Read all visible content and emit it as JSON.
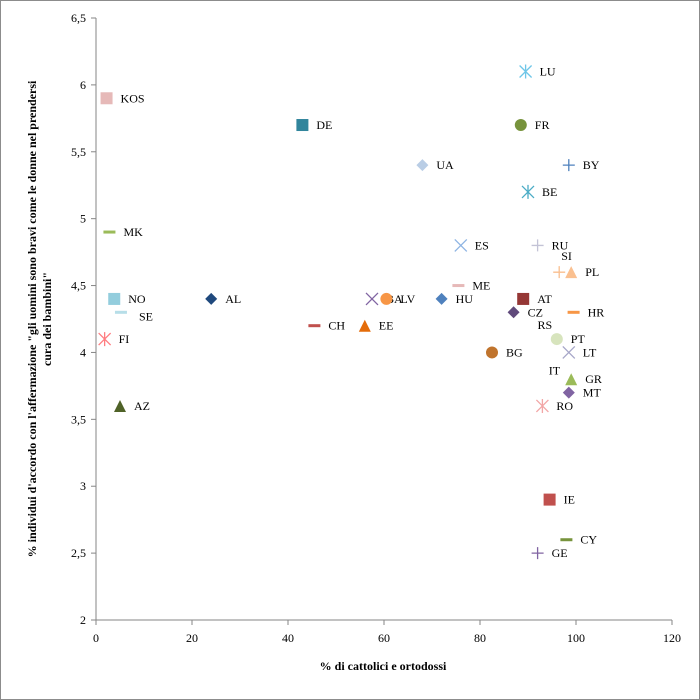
{
  "chart_data": {
    "type": "scatter",
    "xlabel": "% di cattolici e ortodossi",
    "ylabel_lines": [
      "% individui d'accordo con l'affermazione \"gli uomini sono bravi come le donne nel prendersi",
      "cura dei bambini\""
    ],
    "xlim": [
      0,
      120
    ],
    "ylim": [
      2,
      6.5
    ],
    "x_ticks": [
      "0",
      "20",
      "40",
      "60",
      "80",
      "100",
      "120"
    ],
    "y_ticks": [
      "2",
      "2,5",
      "3",
      "3,5",
      "4",
      "4,5",
      "5",
      "5,5",
      "6",
      "6,5"
    ],
    "grid": false,
    "points": [
      {
        "label": "LU",
        "x": 89.5,
        "y": 6.1,
        "marker": "asterisk",
        "color": "#6ec6e8"
      },
      {
        "label": "KOS",
        "x": 2.2,
        "y": 5.9,
        "marker": "square",
        "color": "#e6b9b8"
      },
      {
        "label": "DE",
        "x": 43,
        "y": 5.7,
        "marker": "square",
        "color": "#31859c"
      },
      {
        "label": "FR",
        "x": 88.5,
        "y": 5.7,
        "marker": "circle",
        "color": "#77933c"
      },
      {
        "label": "UA",
        "x": 68,
        "y": 5.4,
        "marker": "diamond",
        "color": "#b9cde5"
      },
      {
        "label": "BY",
        "x": 98.5,
        "y": 5.4,
        "marker": "plus",
        "color": "#4f81bd"
      },
      {
        "label": "BE",
        "x": 90,
        "y": 5.2,
        "marker": "asterisk",
        "color": "#4bacc6"
      },
      {
        "label": "MK",
        "x": 2.8,
        "y": 4.9,
        "marker": "dash",
        "color": "#9bbb59"
      },
      {
        "label": "ES",
        "x": 76,
        "y": 4.8,
        "marker": "x",
        "color": "#8eb4e3"
      },
      {
        "label": "RU",
        "x": 92,
        "y": 4.8,
        "marker": "plus",
        "color": "#c3c3d6"
      },
      {
        "label": "SI",
        "x": 96.5,
        "y": 4.6,
        "marker": "plus",
        "color": "#fabf8f"
      },
      {
        "label": "PL",
        "x": 99,
        "y": 4.6,
        "marker": "triangle",
        "color": "#fac090"
      },
      {
        "label": "ME",
        "x": 75.5,
        "y": 4.5,
        "marker": "dash",
        "color": "#e6b9b8"
      },
      {
        "label": "NO",
        "x": 3.8,
        "y": 4.4,
        "marker": "square",
        "color": "#93cddd"
      },
      {
        "label": "AL",
        "x": 24,
        "y": 4.4,
        "marker": "diamond",
        "color": "#1f497d"
      },
      {
        "label": "BA",
        "x": 57.5,
        "y": 4.4,
        "marker": "x",
        "color": "#8064a2"
      },
      {
        "label": "LV",
        "x": 60.5,
        "y": 4.4,
        "marker": "circle",
        "color": "#f79646"
      },
      {
        "label": "HU",
        "x": 72,
        "y": 4.4,
        "marker": "diamond",
        "color": "#4f81bd"
      },
      {
        "label": "AT",
        "x": 89,
        "y": 4.4,
        "marker": "square",
        "color": "#953735"
      },
      {
        "label": "SE",
        "x": 5.2,
        "y": 4.3,
        "marker": "dash",
        "color": "#b7dee8"
      },
      {
        "label": "CZ",
        "x": 87,
        "y": 4.3,
        "marker": "diamond",
        "color": "#604a7b"
      },
      {
        "label": "HR",
        "x": 99.5,
        "y": 4.3,
        "marker": "dash",
        "color": "#f79646"
      },
      {
        "label": "CH",
        "x": 45.5,
        "y": 4.2,
        "marker": "dash",
        "color": "#c0504d"
      },
      {
        "label": "EE",
        "x": 56,
        "y": 4.2,
        "marker": "triangle",
        "color": "#e46c0a"
      },
      {
        "label": "FI",
        "x": 1.8,
        "y": 4.1,
        "marker": "asterisk",
        "color": "#ff7c80"
      },
      {
        "label": "RS",
        "x": 93.5,
        "y": 4.1,
        "marker": "none",
        "color": "#000000"
      },
      {
        "label": "PT",
        "x": 96,
        "y": 4.1,
        "marker": "circle",
        "color": "#d7e4bd"
      },
      {
        "label": "BG",
        "x": 82.5,
        "y": 4.0,
        "marker": "circle",
        "color": "#c0742d"
      },
      {
        "label": "LT",
        "x": 98.5,
        "y": 4.0,
        "marker": "x",
        "color": "#a6a6c8"
      },
      {
        "label": "IT",
        "x": 95.5,
        "y": 3.82,
        "marker": "none",
        "color": "#000000"
      },
      {
        "label": "GR",
        "x": 99,
        "y": 3.8,
        "marker": "triangle",
        "color": "#9bbb59"
      },
      {
        "label": "MT",
        "x": 98.5,
        "y": 3.7,
        "marker": "diamond",
        "color": "#8064a2"
      },
      {
        "label": "AZ",
        "x": 5,
        "y": 3.6,
        "marker": "triangle",
        "color": "#4f6228"
      },
      {
        "label": "RO",
        "x": 93,
        "y": 3.6,
        "marker": "asterisk",
        "color": "#f2a6a6"
      },
      {
        "label": "IE",
        "x": 94.5,
        "y": 2.9,
        "marker": "square",
        "color": "#c0504d"
      },
      {
        "label": "CY",
        "x": 98,
        "y": 2.6,
        "marker": "dash",
        "color": "#77933c"
      },
      {
        "label": "GE",
        "x": 92,
        "y": 2.5,
        "marker": "plus",
        "color": "#8064a2"
      }
    ]
  }
}
